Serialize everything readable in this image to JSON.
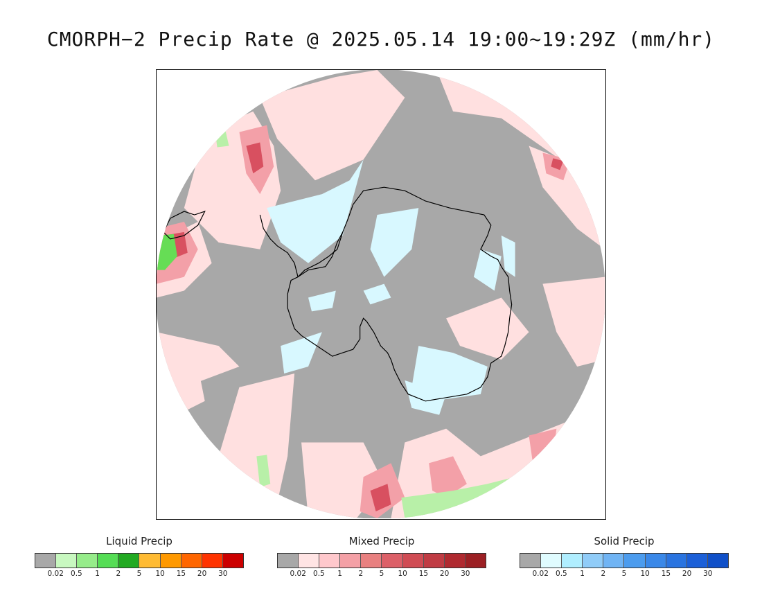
{
  "title": "CMORPH−2 Precip Rate @ 2025.05.14 19:00~19:29Z (mm/hr)",
  "map": {
    "projection": "south polar stereographic",
    "colors": {
      "no_data_gray": "#a8a8a8",
      "ocean_outside": "#ffffff",
      "mixed_light": "#ffe0e0",
      "mixed_mid": "#f3a0a8",
      "mixed_dark": "#d85060",
      "solid_light": "#d8f8ff",
      "liquid_light": "#b8f0a8",
      "liquid_mid": "#66dd55",
      "coastline": "#000000"
    }
  },
  "legends": [
    {
      "title": "Liquid Precip",
      "colors": [
        "#a8a8a8",
        "#c8f8c0",
        "#96ec8a",
        "#55dd55",
        "#22aa22",
        "#ffbb33",
        "#ff9900",
        "#ff6600",
        "#ff3300",
        "#cc0000"
      ],
      "ticks": [
        "0.02",
        "0.5",
        "1",
        "2",
        "5",
        "10",
        "15",
        "20",
        "30"
      ]
    },
    {
      "title": "Mixed Precip",
      "colors": [
        "#a8a8a8",
        "#ffe4e4",
        "#ffc8cc",
        "#f4a0a6",
        "#e88080",
        "#dc6068",
        "#d04c54",
        "#c03c44",
        "#b02a30",
        "#9c2024"
      ],
      "ticks": [
        "0.02",
        "0.5",
        "1",
        "2",
        "5",
        "10",
        "15",
        "20",
        "30"
      ]
    },
    {
      "title": "Solid Precip",
      "colors": [
        "#a8a8a8",
        "#e0fcff",
        "#b0eeff",
        "#90ccf8",
        "#70b4f4",
        "#4c9cee",
        "#3a88e8",
        "#2a74e0",
        "#1c60d8",
        "#1050c8"
      ],
      "ticks": [
        "0.02",
        "0.5",
        "1",
        "2",
        "5",
        "10",
        "15",
        "20",
        "30"
      ]
    }
  ]
}
